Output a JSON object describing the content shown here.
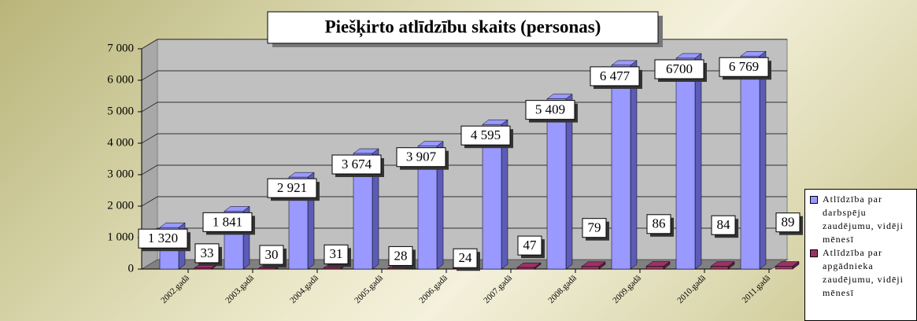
{
  "chart_data": {
    "type": "bar3d",
    "title": "Piešķirto atlīdzību skaits (personas)",
    "categories": [
      "2002.gadā",
      "2003.gadā",
      "2004.gadā",
      "2005.gadā",
      "2006.gadā",
      "2007.gadā",
      "2008.gadā",
      "2009.gadā",
      "2010.gadā",
      "2011.gadā"
    ],
    "series": [
      {
        "name": "Atlīdzība par darbspēju zaudējumu, vidēji mēnesī",
        "color": "#9999ff",
        "values": [
          1320,
          1841,
          2921,
          3674,
          3907,
          4595,
          5409,
          6477,
          6700,
          6769
        ],
        "value_labels": [
          "1 320",
          "1 841",
          "2 921",
          "3 674",
          "3 907",
          "4 595",
          "5 409",
          "6 477",
          "6700",
          "6 769"
        ]
      },
      {
        "name": "Atlīdzība par apgādnieka zaudējumu, vidēji mēnesī",
        "color": "#993366",
        "values": [
          33,
          30,
          31,
          28,
          24,
          47,
          79,
          86,
          84,
          89
        ]
      }
    ],
    "ylim": [
      0,
      7000
    ],
    "yticks": [
      0,
      {
        "value": 1000,
        "label": "1 000"
      },
      {
        "value": 2000,
        "label": "2 000"
      },
      {
        "value": 3000,
        "label": "3 000"
      },
      {
        "value": 4000,
        "label": "4 000"
      },
      {
        "value": 5000,
        "label": "5 000"
      },
      {
        "value": 6000,
        "label": "6 000"
      },
      {
        "value": 7000,
        "label": "7 000"
      }
    ],
    "grid": true
  }
}
